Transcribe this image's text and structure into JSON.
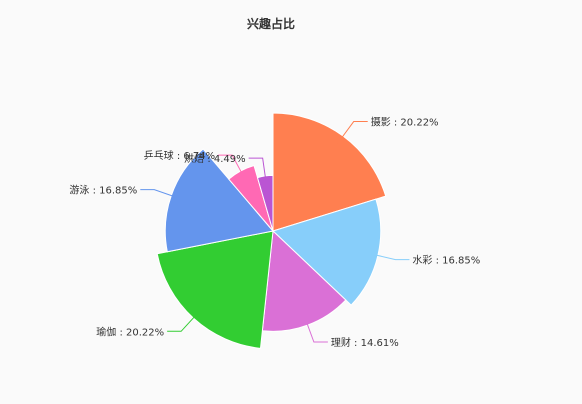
{
  "chart_data": {
    "type": "pie",
    "variant": "rose",
    "title": "兴趣占比",
    "slices": [
      {
        "name": "摄影",
        "value": 20.22,
        "label": "摄影 : 20.22%",
        "color": "#ff7f50"
      },
      {
        "name": "水彩",
        "value": 16.85,
        "label": "水彩 : 16.85%",
        "color": "#87cefa"
      },
      {
        "name": "理财",
        "value": 14.61,
        "label": "理财 : 14.61%",
        "color": "#da70d6"
      },
      {
        "name": "瑜伽",
        "value": 20.22,
        "label": "瑜伽 : 20.22%",
        "color": "#32cd32"
      },
      {
        "name": "游泳",
        "value": 16.85,
        "label": "游泳 : 16.85%",
        "color": "#6495ed"
      },
      {
        "name": "乒乓球",
        "value": 6.74,
        "label": "乒乓球 : 6.74%",
        "color": "#ff69b4"
      },
      {
        "name": "烘焙",
        "value": 4.49,
        "label": "烘焙 : 4.49%",
        "color": "#ba55d3"
      }
    ],
    "legend": "none"
  }
}
